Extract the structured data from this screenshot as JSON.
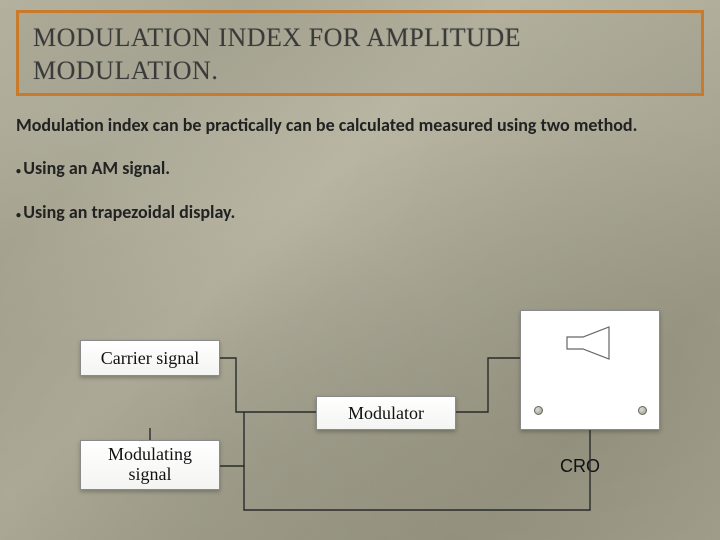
{
  "title": {
    "text": "MODULATION INDEX FOR AMPLITUDE MODULATION.",
    "border_color": "#c97a2a",
    "font_size": 26
  },
  "body": {
    "intro": "Modulation index can be practically can be calculated measured using two method.",
    "bullet1": "Using an AM signal.",
    "bullet2": "Using an trapezoidal display."
  },
  "diagram": {
    "carrier_label": "Carrier signal",
    "modulating_label": "Modulating\nsignal",
    "modulator_label": "Modulator",
    "cro_label": "CRO",
    "wire_color": "#2a2a2a",
    "box_border": "#8a8a8a",
    "box_bg_top": "#ffffff",
    "box_bg_bottom": "#f4f4f2",
    "box_font_size": 18,
    "cro_body_fill": "#fdfdfc",
    "cro_body_stroke": "#888888"
  },
  "background": {
    "base_colors": [
      "#a8a590",
      "#9c9a85",
      "#b5b29e",
      "#a5a28f",
      "#999782"
    ]
  }
}
